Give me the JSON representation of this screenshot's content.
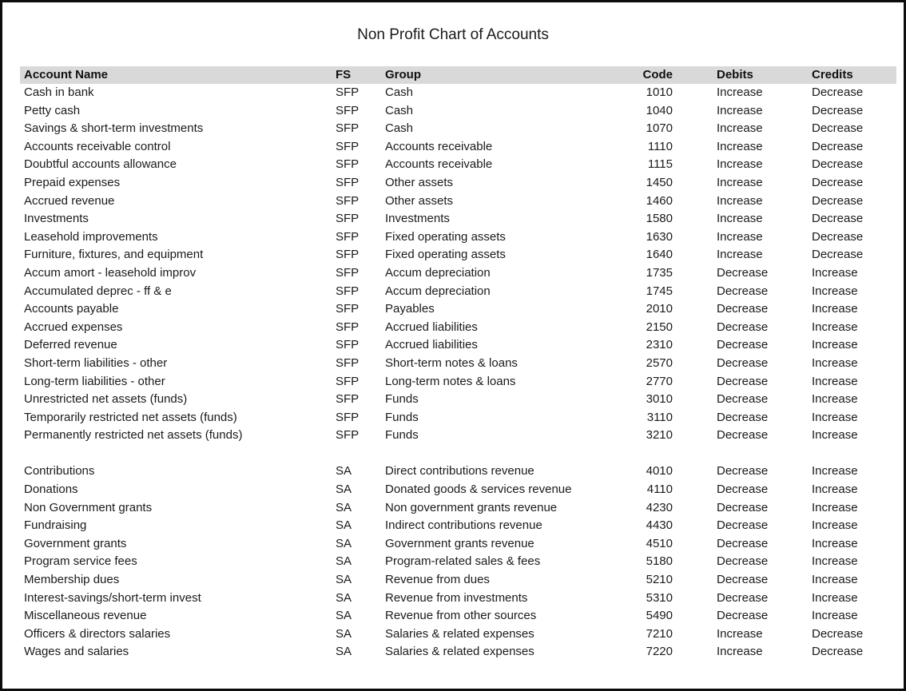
{
  "title": "Non Profit Chart of Accounts",
  "table": {
    "columns": [
      "Account Name",
      "FS",
      "Group",
      "Code",
      "Debits",
      "Credits"
    ],
    "sections": [
      {
        "name": "statement-of-financial-position",
        "rows": [
          [
            "Cash in bank",
            "SFP",
            "Cash",
            "1010",
            "Increase",
            "Decrease"
          ],
          [
            "Petty cash",
            "SFP",
            "Cash",
            "1040",
            "Increase",
            "Decrease"
          ],
          [
            "Savings & short-term investments",
            "SFP",
            "Cash",
            "1070",
            "Increase",
            "Decrease"
          ],
          [
            "Accounts receivable control",
            "SFP",
            "Accounts receivable",
            "1110",
            "Increase",
            "Decrease"
          ],
          [
            "Doubtful accounts allowance",
            "SFP",
            "Accounts receivable",
            "1115",
            "Increase",
            "Decrease"
          ],
          [
            "Prepaid expenses",
            "SFP",
            "Other assets",
            "1450",
            "Increase",
            "Decrease"
          ],
          [
            "Accrued revenue",
            "SFP",
            "Other assets",
            "1460",
            "Increase",
            "Decrease"
          ],
          [
            "Investments",
            "SFP",
            "Investments",
            "1580",
            "Increase",
            "Decrease"
          ],
          [
            "Leasehold improvements",
            "SFP",
            "Fixed operating assets",
            "1630",
            "Increase",
            "Decrease"
          ],
          [
            "Furniture, fixtures, and equipment",
            "SFP",
            "Fixed operating assets",
            "1640",
            "Increase",
            "Decrease"
          ],
          [
            "Accum amort - leasehold improv",
            "SFP",
            "Accum depreciation",
            "1735",
            "Decrease",
            "Increase"
          ],
          [
            "Accumulated deprec - ff & e",
            "SFP",
            "Accum depreciation",
            "1745",
            "Decrease",
            "Increase"
          ],
          [
            "Accounts payable",
            "SFP",
            "Payables",
            "2010",
            "Decrease",
            "Increase"
          ],
          [
            "Accrued expenses",
            "SFP",
            "Accrued liabilities",
            "2150",
            "Decrease",
            "Increase"
          ],
          [
            "Deferred revenue",
            "SFP",
            "Accrued liabilities",
            "2310",
            "Decrease",
            "Increase"
          ],
          [
            "Short-term liabilities - other",
            "SFP",
            "Short-term notes & loans",
            "2570",
            "Decrease",
            "Increase"
          ],
          [
            "Long-term liabilities - other",
            "SFP",
            "Long-term notes & loans",
            "2770",
            "Decrease",
            "Increase"
          ],
          [
            "Unrestricted net assets (funds)",
            "SFP",
            "Funds",
            "3010",
            "Decrease",
            "Increase"
          ],
          [
            "Temporarily restricted  net assets (funds)",
            "SFP",
            "Funds",
            "3110",
            "Decrease",
            "Increase"
          ],
          [
            "Permanently restricted net assets (funds)",
            "SFP",
            "Funds",
            "3210",
            "Decrease",
            "Increase"
          ]
        ]
      },
      {
        "name": "statement-of-activities",
        "rows": [
          [
            "Contributions",
            "SA",
            "Direct contributions revenue",
            "4010",
            "Decrease",
            "Increase"
          ],
          [
            "Donations",
            "SA",
            "Donated goods & services revenue",
            "4110",
            "Decrease",
            "Increase"
          ],
          [
            "Non Government grants",
            "SA",
            "Non government grants revenue",
            "4230",
            "Decrease",
            "Increase"
          ],
          [
            "Fundraising",
            "SA",
            "Indirect contributions revenue",
            "4430",
            "Decrease",
            "Increase"
          ],
          [
            "Government grants",
            "SA",
            "Government grants revenue",
            "4510",
            "Decrease",
            "Increase"
          ],
          [
            "Program service fees",
            "SA",
            "Program-related sales & fees",
            "5180",
            "Decrease",
            "Increase"
          ],
          [
            "Membership dues",
            "SA",
            "Revenue from dues",
            "5210",
            "Decrease",
            "Increase"
          ],
          [
            "Interest-savings/short-term invest",
            "SA",
            "Revenue from investments",
            "5310",
            "Decrease",
            "Increase"
          ],
          [
            "Miscellaneous revenue",
            "SA",
            "Revenue from other sources",
            "5490",
            "Decrease",
            "Increase"
          ],
          [
            "Officers & directors salaries",
            "SA",
            "Salaries & related expenses",
            "7210",
            "Increase",
            "Decrease"
          ],
          [
            "Wages and salaries",
            "SA",
            "Salaries & related expenses",
            "7220",
            "Increase",
            "Decrease"
          ]
        ]
      }
    ]
  }
}
